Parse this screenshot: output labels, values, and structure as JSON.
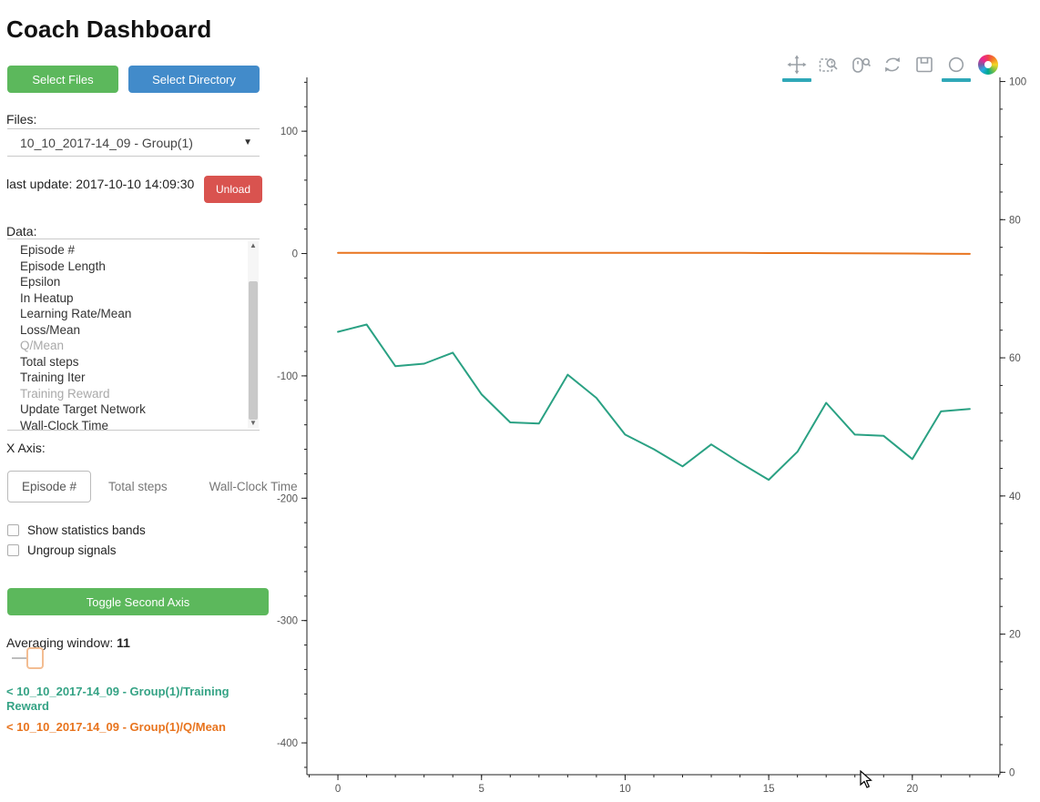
{
  "title": "Coach Dashboard",
  "colors": {
    "green_button": "#5cb85c",
    "blue_button": "#428bca",
    "red_button": "#d9534f",
    "active_tool_bar": "#2fa8b8",
    "training_reward_line": "#2aa183",
    "q_mean_line": "#e8741e"
  },
  "sidebar": {
    "select_files_label": "Select Files",
    "select_directory_label": "Select Directory",
    "files_label": "Files:",
    "file_selected": "10_10_2017-14_09 - Group(1)",
    "last_update": "last update: 2017-10-10 14:09:30",
    "unload_label": "Unload",
    "data_label": "Data:",
    "data_items": [
      {
        "label": "Episode #",
        "dim": false
      },
      {
        "label": "Episode Length",
        "dim": false
      },
      {
        "label": "Epsilon",
        "dim": false
      },
      {
        "label": "In Heatup",
        "dim": false
      },
      {
        "label": "Learning Rate/Mean",
        "dim": false
      },
      {
        "label": "Loss/Mean",
        "dim": false
      },
      {
        "label": "Q/Mean",
        "dim": true
      },
      {
        "label": "Total steps",
        "dim": false
      },
      {
        "label": "Training Iter",
        "dim": false
      },
      {
        "label": "Training Reward",
        "dim": true
      },
      {
        "label": "Update Target Network",
        "dim": false
      },
      {
        "label": "Wall-Clock Time",
        "dim": false
      }
    ],
    "x_axis_label": "X Axis:",
    "x_axis_tabs": [
      {
        "label": "Episode #",
        "active": true
      },
      {
        "label": "Total steps",
        "active": false
      },
      {
        "label": "Wall-Clock Time",
        "active": false
      }
    ],
    "checkboxes": [
      {
        "label": "Show statistics bands",
        "checked": false
      },
      {
        "label": "Ungroup signals",
        "checked": false
      }
    ],
    "toggle_second_axis_label": "Toggle Second Axis",
    "averaging_label": "Averaging window:",
    "averaging_value": "11",
    "legend": [
      {
        "text": "< 10_10_2017-14_09 - Group(1)/Training Reward",
        "color": "#35a385"
      },
      {
        "text": "< 10_10_2017-14_09 - Group(1)/Q/Mean",
        "color": "#e8741e"
      }
    ]
  },
  "toolbar": {
    "icons": [
      {
        "name": "pan",
        "active": true
      },
      {
        "name": "box-zoom",
        "active": false
      },
      {
        "name": "wheel-zoom",
        "active": false
      },
      {
        "name": "reset",
        "active": false
      },
      {
        "name": "save",
        "active": false
      },
      {
        "name": "hover",
        "active": true
      },
      {
        "name": "bokeh-logo",
        "active": false
      }
    ]
  },
  "chart_data": {
    "type": "line",
    "title": "",
    "xlabel": "",
    "ylabel": "",
    "grid": false,
    "legend_position": "left-panel",
    "x": [
      0,
      1,
      2,
      3,
      4,
      5,
      6,
      7,
      8,
      9,
      10,
      11,
      12,
      13,
      14,
      15,
      16,
      17,
      18,
      19,
      20,
      21,
      22
    ],
    "series": [
      {
        "name": "10_10_2017-14_09 - Group(1)/Training Reward",
        "color": "#2aa183",
        "axis": "left",
        "values": [
          -64,
          -58,
          -92,
          -90,
          -81,
          -115,
          -138,
          -139,
          -99,
          -118,
          -148,
          -160,
          -174,
          -156,
          -171,
          -185,
          -162,
          -122,
          -148,
          -149,
          -168,
          -129,
          -127
        ]
      },
      {
        "name": "10_10_2017-14_09 - Group(1)/Q/Mean",
        "color": "#e8741e",
        "axis": "left",
        "values": [
          0.5,
          0.5,
          0.5,
          0.5,
          0.5,
          0.5,
          0.5,
          0.5,
          0.5,
          0.5,
          0.5,
          0.5,
          0.5,
          0.5,
          0.5,
          0.4,
          0.4,
          0.3,
          0.2,
          0.1,
          0,
          -0.2,
          -0.3
        ]
      }
    ],
    "axes": {
      "left": {
        "ticks": [
          100,
          0,
          -100,
          -200,
          -300,
          -400
        ],
        "minor_step": 20,
        "range": [
          -426,
          144
        ]
      },
      "right": {
        "ticks": [
          100,
          80,
          60,
          40,
          20,
          0
        ],
        "minor_step": 4,
        "range": [
          -0.35,
          100.6
        ]
      },
      "bottom": {
        "ticks": [
          0,
          5,
          10,
          15,
          20
        ],
        "minor_step": 1,
        "range": [
          -1.08,
          23.05
        ]
      }
    }
  }
}
